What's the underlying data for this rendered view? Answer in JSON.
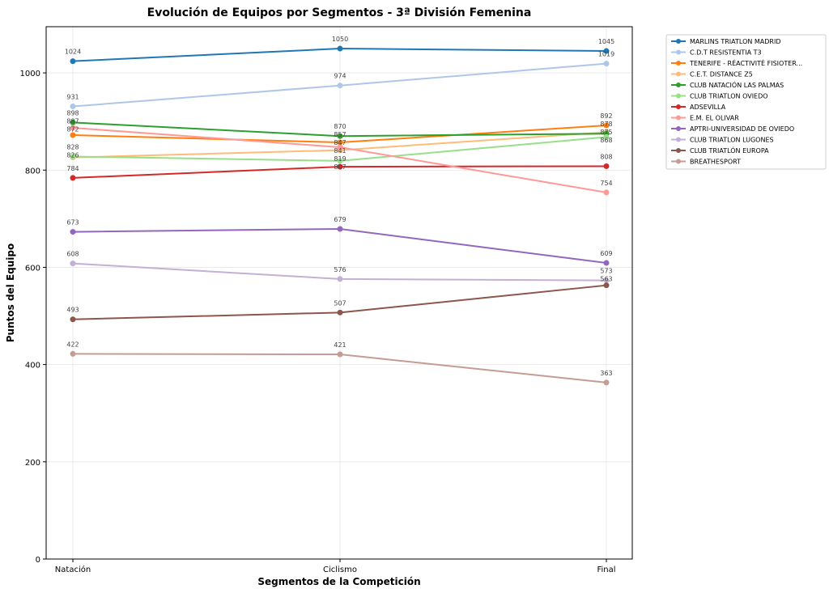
{
  "chart_data": {
    "type": "line",
    "title": "Evolución de Equipos por Segmentos - 3ª División Femenina",
    "xlabel": "Segmentos de la Competición",
    "ylabel": "Puntos del Equipo",
    "categories": [
      "Natación",
      "Ciclismo",
      "Final"
    ],
    "ylim": [
      0,
      1095
    ],
    "yticks": [
      0,
      200,
      400,
      600,
      800,
      1000
    ],
    "grid": true,
    "legend_position": "outside-top-right",
    "series": [
      {
        "name": "MARLINS TRIATLON MADRID",
        "color": "#1f77b4",
        "values": [
          1024,
          1050,
          1045
        ]
      },
      {
        "name": "C.D.T RESISTENTIA T3",
        "color": "#aec7e8",
        "values": [
          931,
          974,
          1019
        ]
      },
      {
        "name": "TENERIFE - RÉACTIVITÉ FISIOTER...",
        "color": "#ff7f0e",
        "values": [
          872,
          857,
          892
        ]
      },
      {
        "name": "C.E.T. DISTANCE Z5",
        "color": "#ffbb78",
        "values": [
          826,
          841,
          878
        ]
      },
      {
        "name": "CLUB NATACIÓN LAS PALMAS",
        "color": "#2ca02c",
        "values": [
          898,
          870,
          875
        ]
      },
      {
        "name": "CLUB TRIATLON OVIEDO",
        "color": "#98df8a",
        "values": [
          828,
          819,
          868
        ]
      },
      {
        "name": "ADSEVILLA",
        "color": "#d62728",
        "values": [
          784,
          807,
          808
        ]
      },
      {
        "name": "E.M. EL OLIVAR",
        "color": "#ff9896",
        "values": [
          887,
          847,
          754
        ]
      },
      {
        "name": "APTRI-UNIVERSIDAD DE OVIEDO",
        "color": "#9467bd",
        "values": [
          673,
          679,
          609
        ]
      },
      {
        "name": "CLUB TRIATLON LUGONES",
        "color": "#c5b0d5",
        "values": [
          608,
          576,
          573
        ]
      },
      {
        "name": "CLUB TRIATLÓN EUROPA",
        "color": "#8c564b",
        "values": [
          493,
          507,
          563
        ]
      },
      {
        "name": "BREATHESPORT",
        "color": "#c49c94",
        "values": [
          422,
          421,
          363
        ]
      }
    ]
  }
}
